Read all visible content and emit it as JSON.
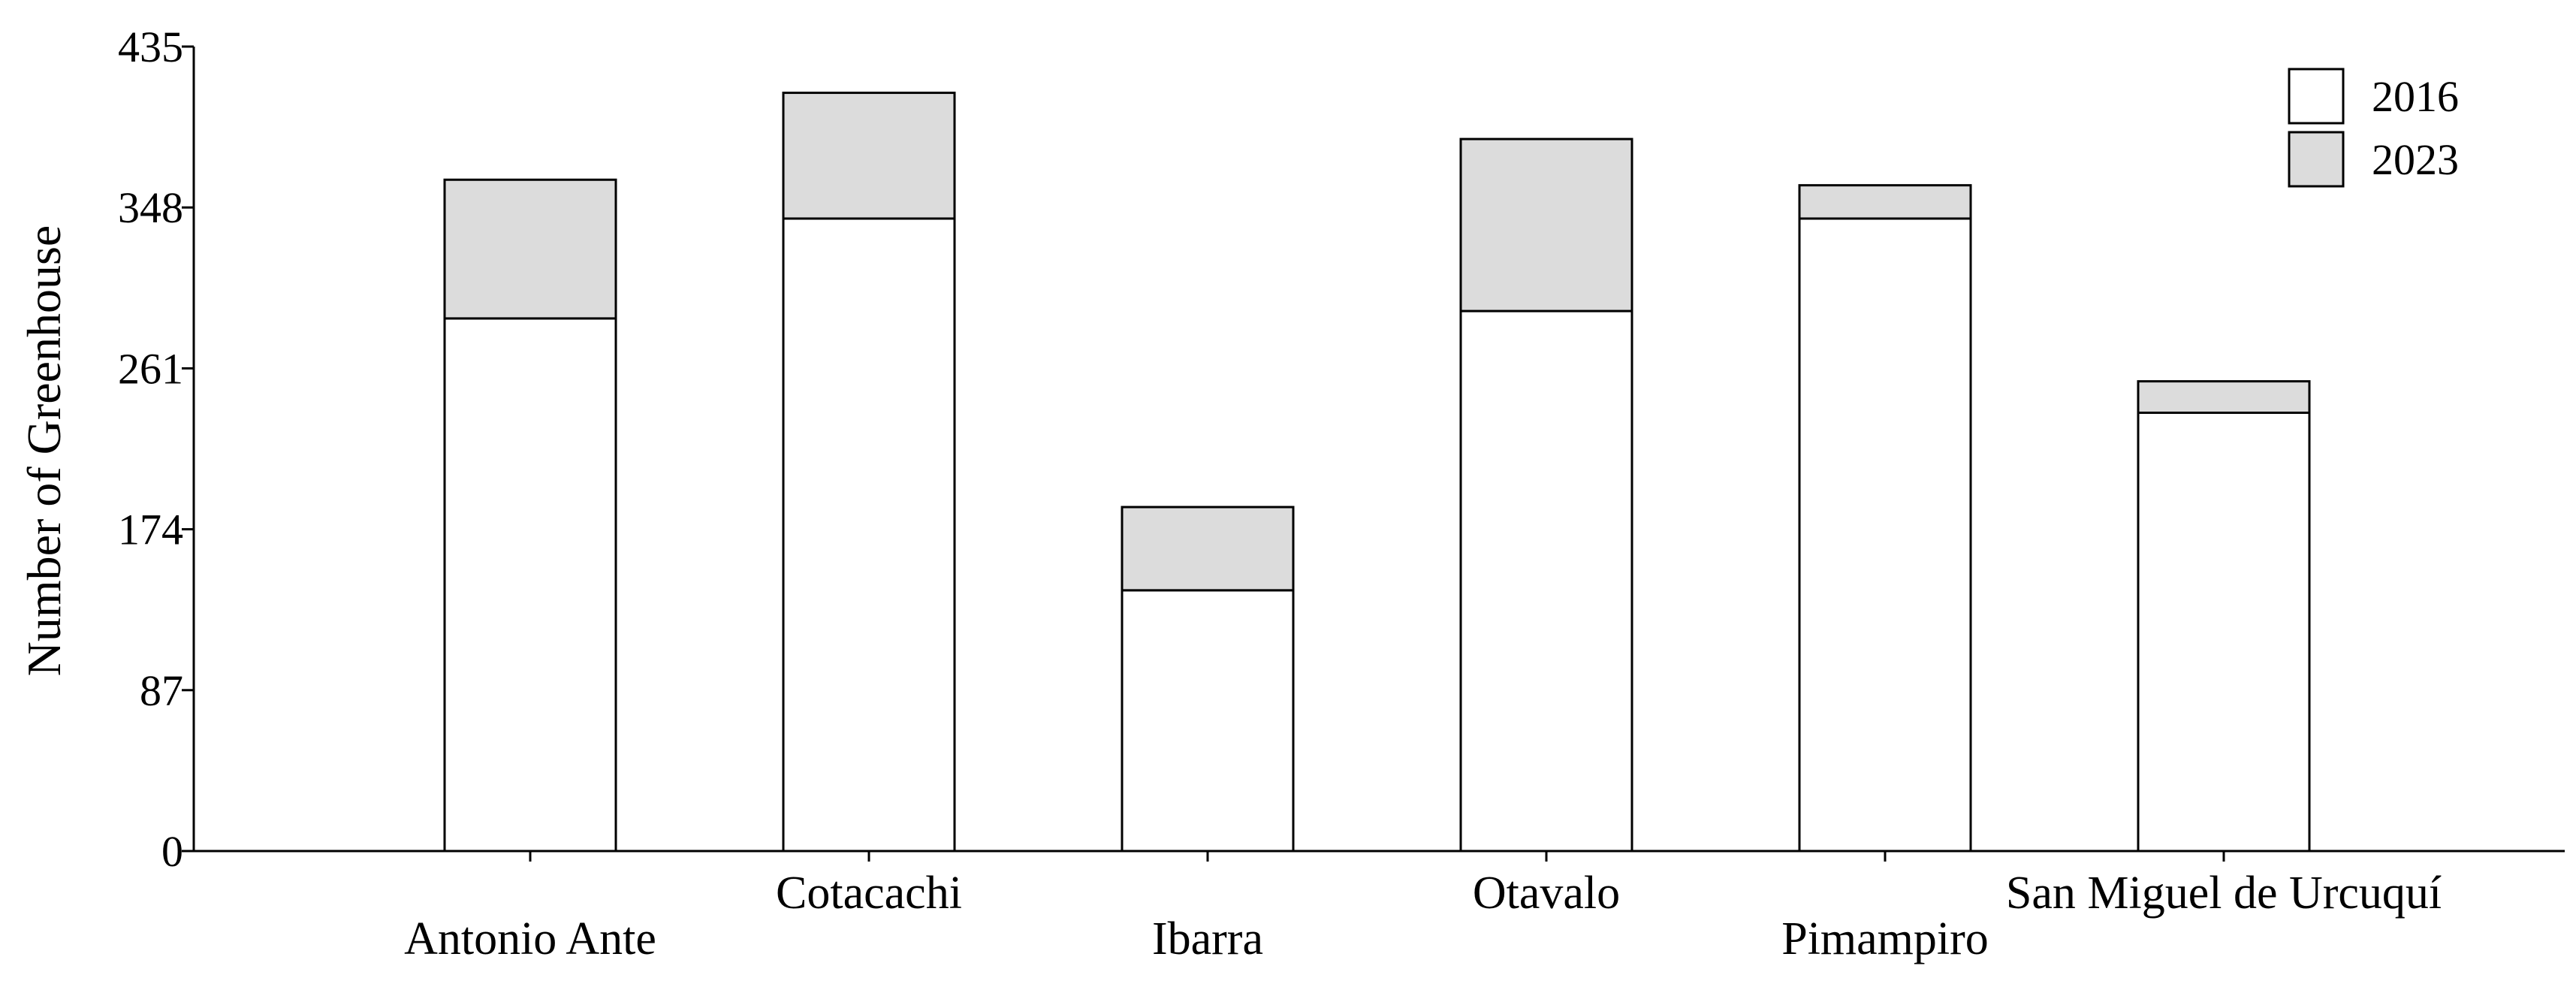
{
  "chart_data": {
    "type": "bar",
    "stacked": true,
    "categories": [
      "Antonio Ante",
      "Cotacachi",
      "Ibarra",
      "Otavalo",
      "Pimampiro",
      "San Miguel de Urcuquí"
    ],
    "series": [
      {
        "name": "2016",
        "values": [
          288,
          342,
          141,
          292,
          342,
          237
        ],
        "color": "#ffffff"
      },
      {
        "name": "2023",
        "values": [
          75,
          68,
          45,
          93,
          18,
          17
        ],
        "color": "#dcdcdc"
      }
    ],
    "xlabel": "",
    "ylabel": "Number of Greenhouse",
    "ylim": [
      0,
      435
    ],
    "yticks": [
      0,
      87,
      174,
      261,
      348,
      435
    ],
    "ytick_labels": [
      "0",
      "87",
      "174",
      "261",
      "348",
      "435"
    ],
    "grid": false,
    "legend_position": "top-right"
  }
}
